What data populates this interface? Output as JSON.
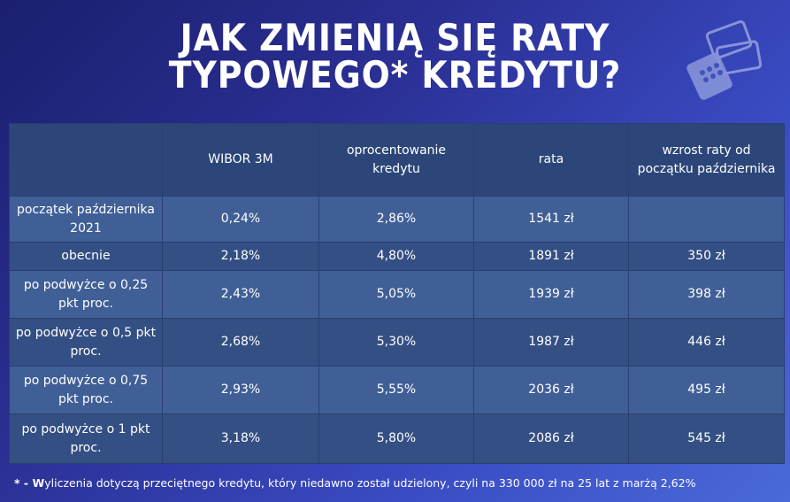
{
  "title": {
    "line1": "JAK ZMIENIĄ SIĘ RATY",
    "line2": "TYPOWEGO* KREDYTU?"
  },
  "table": {
    "headers": [
      "",
      "WIBOR 3M",
      "oprocentowanie kredytu",
      "rata",
      "wzrost raty od początku października"
    ],
    "rows": [
      {
        "label": "początek października 2021",
        "wibor": "0,24%",
        "oprocentowanie": "2,86%",
        "rata": "1541 zł",
        "wzrost": ""
      },
      {
        "label": "obecnie",
        "wibor": "2,18%",
        "oprocentowanie": "4,80%",
        "rata": "1891 zł",
        "wzrost": "350 zł"
      },
      {
        "label": "po podwyżce o 0,25 pkt proc.",
        "wibor": "2,43%",
        "oprocentowanie": "5,05%",
        "rata": "1939 zł",
        "wzrost": "398 zł"
      },
      {
        "label": "po podwyżce o 0,5 pkt proc.",
        "wibor": "2,68%",
        "oprocentowanie": "5,30%",
        "rata": "1987 zł",
        "wzrost": "446 zł"
      },
      {
        "label": "po podwyżce o 0,75 pkt proc.",
        "wibor": "2,93%",
        "oprocentowanie": "5,55%",
        "rata": "2036 zł",
        "wzrost": "495 zł"
      },
      {
        "label": "po podwyżce o 1 pkt proc.",
        "wibor": "3,18%",
        "oprocentowanie": "5,80%",
        "rata": "2086 zł",
        "wzrost": "545 zł"
      }
    ]
  },
  "footnote": {
    "marker": "* - ",
    "first_letter": "W",
    "text": "yliczenia dotyczą przeciętnego kredytu, który niedawno został udzielony, czyli na 330 000 zł na 25 lat z marżą 2,62%"
  },
  "icons": {
    "decoration": "credit-cards-calculator-icon"
  },
  "colors": {
    "header_bg": "#2c4679",
    "row_light": "#3f5f96",
    "row_dark": "#334f83"
  }
}
